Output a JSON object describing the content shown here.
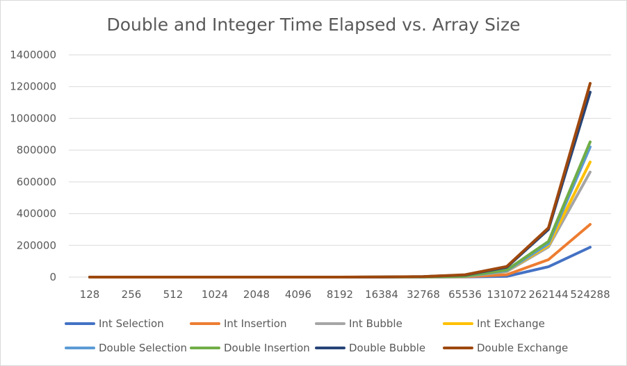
{
  "chart_data": {
    "type": "line",
    "title": "Double and Integer Time Elapsed vs. Array Size",
    "categories": [
      "128",
      "256",
      "512",
      "1024",
      "2048",
      "4096",
      "8192",
      "16384",
      "32768",
      "65536",
      "131072",
      "262144",
      "524288"
    ],
    "ylim": [
      0,
      1400000
    ],
    "yticks": [
      "0",
      "200000",
      "400000",
      "600000",
      "800000",
      "1000000",
      "1200000",
      "1400000"
    ],
    "grid": true,
    "legend_position": "bottom",
    "series": [
      {
        "name": "Int Selection",
        "color": "#4472C4",
        "values": [
          0,
          0,
          0,
          0,
          0,
          0,
          0,
          100,
          300,
          1000,
          5000,
          65000,
          188000
        ]
      },
      {
        "name": "Int Insertion",
        "color": "#ED7D31",
        "values": [
          0,
          0,
          0,
          0,
          0,
          0,
          0,
          100,
          500,
          2000,
          15000,
          110000,
          332000
        ]
      },
      {
        "name": "Int Bubble",
        "color": "#A5A5A5",
        "values": [
          0,
          0,
          0,
          0,
          0,
          0,
          100,
          200,
          800,
          4000,
          35000,
          190000,
          662000
        ]
      },
      {
        "name": "Int Exchange",
        "color": "#FFC000",
        "values": [
          0,
          0,
          0,
          0,
          0,
          0,
          100,
          200,
          900,
          4500,
          38000,
          200000,
          725000
        ]
      },
      {
        "name": "Double Selection",
        "color": "#5B9BD5",
        "values": [
          0,
          0,
          0,
          0,
          0,
          0,
          100,
          250,
          1000,
          5000,
          40000,
          210000,
          820000
        ]
      },
      {
        "name": "Double Insertion",
        "color": "#70AD47",
        "values": [
          0,
          0,
          0,
          0,
          0,
          0,
          100,
          300,
          1000,
          5500,
          45000,
          225000,
          852000
        ]
      },
      {
        "name": "Double Bubble",
        "color": "#264478",
        "values": [
          0,
          0,
          0,
          0,
          0,
          0,
          200,
          600,
          3000,
          13000,
          62000,
          300000,
          1165000
        ]
      },
      {
        "name": "Double Exchange",
        "color": "#9E480E",
        "values": [
          0,
          0,
          0,
          0,
          0,
          0,
          200,
          700,
          3500,
          15000,
          67000,
          310000,
          1220000
        ]
      }
    ]
  }
}
